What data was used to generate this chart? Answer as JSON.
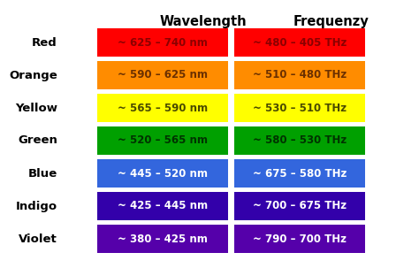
{
  "title_wavelength": "Wavelength",
  "title_frequency": "Frequenzy",
  "rows": [
    {
      "label": "Red",
      "wavelength": "~ 625 – 740 nm",
      "frequency": "~ 480 – 405 THz",
      "color": "#FF0000",
      "text_color": "#8B0000"
    },
    {
      "label": "Orange",
      "wavelength": "~ 590 – 625 nm",
      "frequency": "~ 510 – 480 THz",
      "color": "#FF8C00",
      "text_color": "#6B3000"
    },
    {
      "label": "Yellow",
      "wavelength": "~ 565 – 590 nm",
      "frequency": "~ 530 – 510 THz",
      "color": "#FFFF00",
      "text_color": "#4A4A00"
    },
    {
      "label": "Green",
      "wavelength": "~ 520 – 565 nm",
      "frequency": "~ 580 – 530 THz",
      "color": "#00A000",
      "text_color": "#003300"
    },
    {
      "label": "Blue",
      "wavelength": "~ 445 – 520 nm",
      "frequency": "~ 675 – 580 THz",
      "color": "#3366DD",
      "text_color": "#FFFFFF"
    },
    {
      "label": "Indigo",
      "wavelength": "~ 425 – 445 nm",
      "frequency": "~ 700 – 675 THz",
      "color": "#3300AA",
      "text_color": "#FFFFFF"
    },
    {
      "label": "Violet",
      "wavelength": "~ 380 – 425 nm",
      "frequency": "~ 790 – 700 THz",
      "color": "#5500AA",
      "text_color": "#FFFFFF"
    }
  ],
  "bg_color": "#FFFFFF",
  "label_color": "#000000",
  "header_color": "#000000",
  "fig_width": 4.74,
  "fig_height": 3.03,
  "dpi": 100
}
